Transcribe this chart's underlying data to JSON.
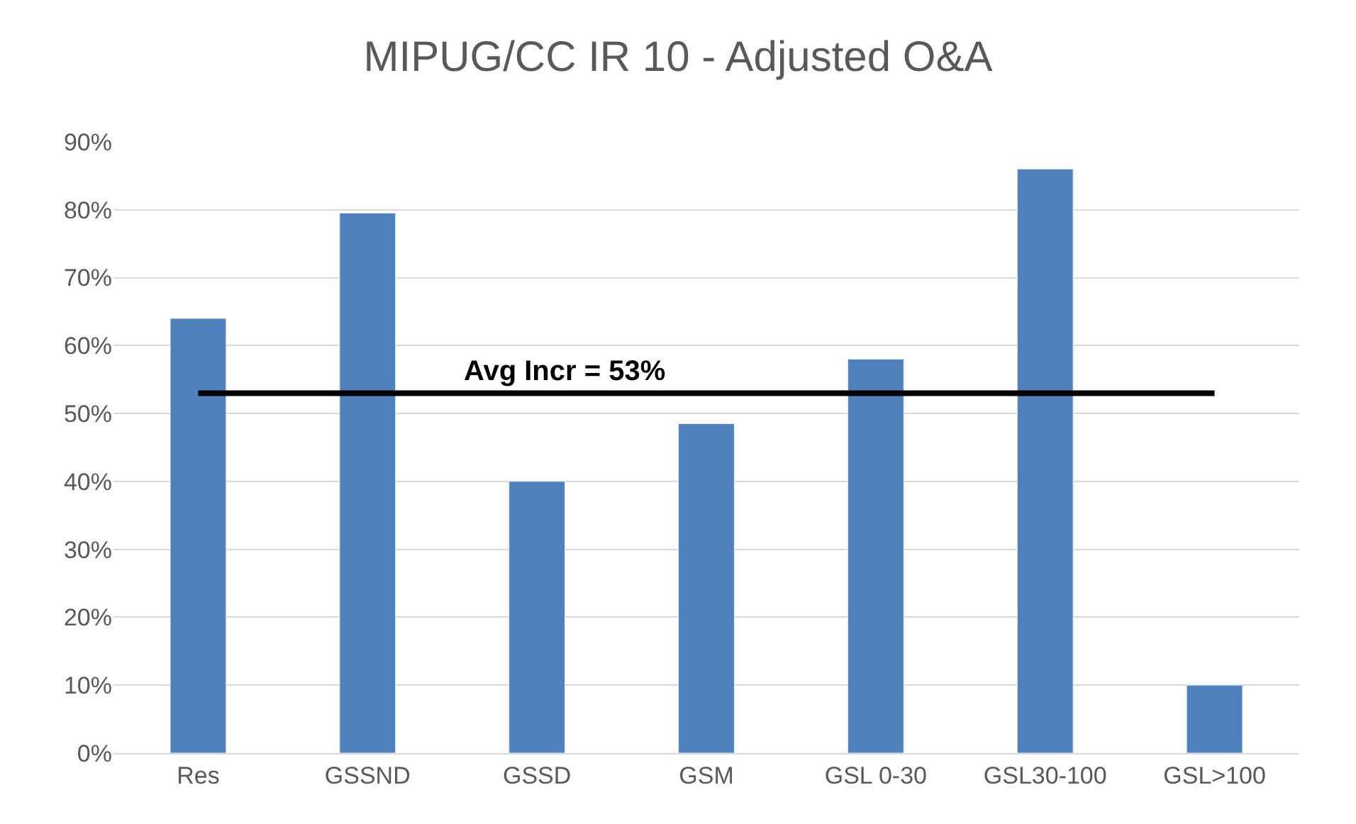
{
  "chart_data": {
    "type": "bar",
    "title": "MIPUG/CC IR 10 - Adjusted O&A",
    "categories": [
      "Res",
      "GSSND",
      "GSSD",
      "GSM",
      "GSL 0-30",
      "GSL30-100",
      "GSL>100"
    ],
    "values": [
      64,
      79.5,
      40,
      48.5,
      58,
      86,
      10
    ],
    "color": "#4f81bd",
    "ylim": [
      0,
      90
    ],
    "yticks": [
      {
        "value": 0,
        "label": "0%"
      },
      {
        "value": 10,
        "label": "10%"
      },
      {
        "value": 20,
        "label": "20%"
      },
      {
        "value": 30,
        "label": "30%"
      },
      {
        "value": 40,
        "label": "40%"
      },
      {
        "value": 50,
        "label": "50%"
      },
      {
        "value": 60,
        "label": "60%"
      },
      {
        "value": 70,
        "label": "70%"
      },
      {
        "value": 80,
        "label": "80%"
      },
      {
        "value": 90,
        "label": "90%"
      }
    ],
    "ref_lines": [
      {
        "axis": "y",
        "value": 53,
        "label": "Avg Incr = 53%",
        "color": "#000000"
      }
    ],
    "grid": "y"
  }
}
